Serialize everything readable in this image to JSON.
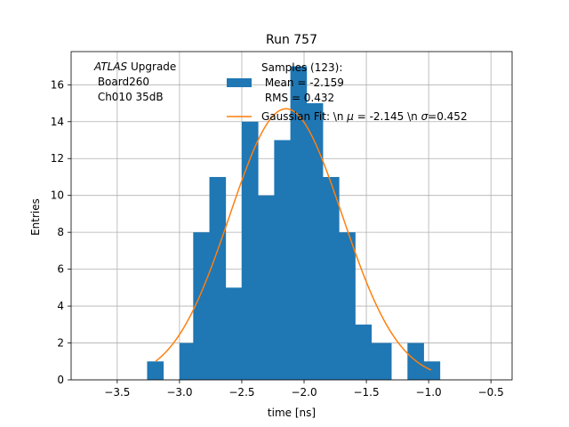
{
  "chart_data": {
    "type": "bar",
    "title": "Run 757",
    "xlabel": "time [ns]",
    "ylabel": "Entries",
    "xlim": [
      -3.87,
      -0.33
    ],
    "ylim": [
      0,
      17.8
    ],
    "xticks": [
      -3.5,
      -3.0,
      -2.5,
      -2.0,
      -1.5,
      -1.0,
      -0.5
    ],
    "xtick_labels": [
      "−3.5",
      "−3.0",
      "−2.5",
      "−2.0",
      "−1.5",
      "−1.0",
      "−0.5"
    ],
    "yticks": [
      0,
      2,
      4,
      6,
      8,
      10,
      12,
      14,
      16
    ],
    "ytick_labels": [
      "0",
      "2",
      "4",
      "6",
      "8",
      "10",
      "12",
      "14",
      "16"
    ],
    "grid": true,
    "annotation": {
      "italic": "ATLAS",
      "line1_rest": " Upgrade",
      "line2": " Board260",
      "line3": " Ch010 35dB"
    },
    "legend": {
      "placement": "top-right",
      "histogram_label_lines": [
        "Samples (123):",
        " Mean = -2.159",
        " RMS = 0.432"
      ],
      "fit_label_prefix": "Gaussian Fit: \\n ",
      "fit_label_mu": "μ",
      "fit_label_mid": " = -2.145 \\n ",
      "fit_label_sigma": "σ",
      "fit_label_suffix": "=0.452"
    },
    "series": [
      {
        "name": "Samples (123)",
        "type": "histogram",
        "color": "#1f77b4",
        "bins": [
          {
            "x0": -3.26,
            "x1": -3.13,
            "count": 1
          },
          {
            "x0": -3.13,
            "x1": -3.0,
            "count": 0
          },
          {
            "x0": -3.0,
            "x1": -2.89,
            "count": 2
          },
          {
            "x0": -2.89,
            "x1": -2.76,
            "count": 8
          },
          {
            "x0": -2.76,
            "x1": -2.63,
            "count": 11
          },
          {
            "x0": -2.63,
            "x1": -2.5,
            "count": 5
          },
          {
            "x0": -2.5,
            "x1": -2.37,
            "count": 14
          },
          {
            "x0": -2.37,
            "x1": -2.24,
            "count": 10
          },
          {
            "x0": -2.24,
            "x1": -2.11,
            "count": 13
          },
          {
            "x0": -2.11,
            "x1": -1.98,
            "count": 17
          },
          {
            "x0": -1.98,
            "x1": -1.85,
            "count": 15
          },
          {
            "x0": -1.85,
            "x1": -1.72,
            "count": 11
          },
          {
            "x0": -1.72,
            "x1": -1.59,
            "count": 8
          },
          {
            "x0": -1.59,
            "x1": -1.46,
            "count": 3
          },
          {
            "x0": -1.46,
            "x1": -1.3,
            "count": 2
          },
          {
            "x0": -1.3,
            "x1": -1.17,
            "count": 0
          },
          {
            "x0": -1.17,
            "x1": -1.04,
            "count": 2
          },
          {
            "x0": -1.04,
            "x1": -0.91,
            "count": 1
          }
        ]
      },
      {
        "name": "Gaussian Fit",
        "type": "line",
        "color": "#ff7f0e",
        "function": "gaussian",
        "mu": -2.145,
        "sigma": 0.452,
        "amplitude": 14.7,
        "x_range": [
          -3.19,
          -0.98
        ]
      }
    ]
  }
}
